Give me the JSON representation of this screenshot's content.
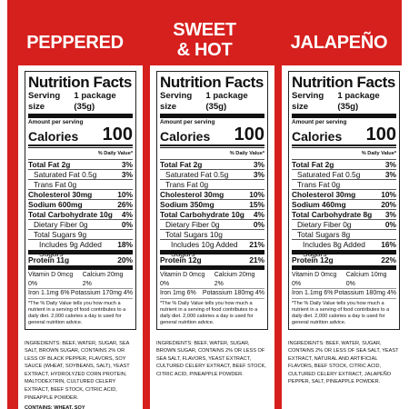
{
  "panels": [
    {
      "flavor_lines": [
        "PEPPERED",
        ""
      ],
      "title": "Nutrition Facts",
      "serving_label": "Serving size",
      "serving_value": "1 package (35g)",
      "amount_per_serving": "Amount per serving",
      "calories_label": "Calories",
      "calories": "100",
      "dv_header": "% Daily Value*",
      "nutrients": [
        {
          "label": "Total Fat 2g",
          "dv": "3%",
          "bold": true,
          "indent": 0
        },
        {
          "label": "Saturated Fat 0.5g",
          "dv": "3%",
          "bold": false,
          "indent": 1
        },
        {
          "label": "Trans Fat 0g",
          "dv": "",
          "bold": false,
          "indent": 1
        },
        {
          "label": "Cholesterol 30mg",
          "dv": "10%",
          "bold": true,
          "indent": 0
        },
        {
          "label": "Sodium 600mg",
          "dv": "26%",
          "bold": true,
          "indent": 0
        },
        {
          "label": "Total Carbohydrate 10g",
          "dv": "4%",
          "bold": true,
          "indent": 0
        },
        {
          "label": "Dietary Fiber 0g",
          "dv": "0%",
          "bold": false,
          "indent": 1
        },
        {
          "label": "Total Sugars 9g",
          "dv": "",
          "bold": false,
          "indent": 1
        },
        {
          "label": "Includes 9g Added Sugars",
          "dv": "18%",
          "bold": false,
          "indent": 2
        }
      ],
      "protein": "Protein 11g",
      "protein_dv": "20%",
      "vitamins": [
        [
          "Vitamin D 0mcg 0%",
          "Calcium 20mg 2%"
        ],
        [
          "Iron 1.1mg 6%",
          "Potassium 170mg 4%"
        ]
      ],
      "footnote": "*The % Daily Value tells you how much a nutrient in a serving of food contributes to a daily diet. 2,000 calories a day is used for general nutrition advice.",
      "ingredients": "INGREDIENTS: BEEF, WATER, SUGAR, SEA SALT, BROWN SUGAR, CONTAINS 2% OR LESS OF BLACK PEPPER, FLAVORS, SOY SAUCE (WHEAT, SOYBEANS, SALT), YEAST EXTRACT, HYDROLYZED CORN PROTEIN, MALTODEXTRIN, CULTURED CELERY EXTRACT, BEEF STOCK, CITRIC ACID, PINEAPPLE POWDER.",
      "contains": "CONTAINS: WHEAT, SOY"
    },
    {
      "flavor_lines": [
        "SWEET",
        "& HOT"
      ],
      "title": "Nutrition Facts",
      "serving_label": "Serving size",
      "serving_value": "1 package (35g)",
      "amount_per_serving": "Amount per serving",
      "calories_label": "Calories",
      "calories": "100",
      "dv_header": "% Daily Value*",
      "nutrients": [
        {
          "label": "Total Fat 2g",
          "dv": "3%",
          "bold": true,
          "indent": 0
        },
        {
          "label": "Saturated Fat 0.5g",
          "dv": "3%",
          "bold": false,
          "indent": 1
        },
        {
          "label": "Trans Fat 0g",
          "dv": "",
          "bold": false,
          "indent": 1
        },
        {
          "label": "Cholesterol 30mg",
          "dv": "10%",
          "bold": true,
          "indent": 0
        },
        {
          "label": "Sodium 350mg",
          "dv": "15%",
          "bold": true,
          "indent": 0
        },
        {
          "label": "Total Carbohydrate 10g",
          "dv": "4%",
          "bold": true,
          "indent": 0
        },
        {
          "label": "Dietary Fiber 0g",
          "dv": "0%",
          "bold": false,
          "indent": 1
        },
        {
          "label": "Total Sugars 10g",
          "dv": "",
          "bold": false,
          "indent": 1
        },
        {
          "label": "Includes 10g Added Sugars",
          "dv": "21%",
          "bold": false,
          "indent": 2
        }
      ],
      "protein": "Protein 12g",
      "protein_dv": "21%",
      "vitamins": [
        [
          "Vitamin D 0mcg 0%",
          "Calcium 20mg 2%"
        ],
        [
          "Iron 1mg 6%",
          "Potassium 180mg 4%"
        ]
      ],
      "footnote": "*The % Daily Value tells you how much a nutrient in a serving of food contributes to a daily diet. 2,000 calories a day is used for general nutrition advice.",
      "ingredients": "INGREDIENTS: BEEF, WATER, SUGAR, BROWN SUGAR, CONTAINS 2% OR LESS OF SEA SALT, FLAVORS, YEAST EXTRACT, CULTURED CELERY EXTRACT, BEEF STOCK, CITRIC ACID, PINEAPPLE POWDER.",
      "contains": ""
    },
    {
      "flavor_lines": [
        "JALAPEÑO",
        ""
      ],
      "title": "Nutrition Facts",
      "serving_label": "Serving size",
      "serving_value": "1 package (35g)",
      "amount_per_serving": "Amount per serving",
      "calories_label": "Calories",
      "calories": "100",
      "dv_header": "% Daily Value*",
      "nutrients": [
        {
          "label": "Total Fat 2g",
          "dv": "3%",
          "bold": true,
          "indent": 0
        },
        {
          "label": "Saturated Fat 0.5g",
          "dv": "3%",
          "bold": false,
          "indent": 1
        },
        {
          "label": "Trans Fat 0g",
          "dv": "",
          "bold": false,
          "indent": 1
        },
        {
          "label": "Cholesterol 30mg",
          "dv": "10%",
          "bold": true,
          "indent": 0
        },
        {
          "label": "Sodium 460mg",
          "dv": "20%",
          "bold": true,
          "indent": 0
        },
        {
          "label": "Total Carbohydrate 8g",
          "dv": "3%",
          "bold": true,
          "indent": 0
        },
        {
          "label": "Dietary Fiber 0g",
          "dv": "0%",
          "bold": false,
          "indent": 1
        },
        {
          "label": "Total Sugars 8g",
          "dv": "",
          "bold": false,
          "indent": 1
        },
        {
          "label": "Includes 8g Added Sugars",
          "dv": "16%",
          "bold": false,
          "indent": 2
        }
      ],
      "protein": "Protein 12g",
      "protein_dv": "22%",
      "vitamins": [
        [
          "Vitamin D 0mcg 0%",
          "Calcium 10mg 0%"
        ],
        [
          "Iron 1.1mg 6%",
          "Potassium 180mg 4%"
        ]
      ],
      "footnote": "*The % Daily Value tells you how much a nutrient in a serving of food contributes to a daily diet. 2,000 calories a day is used for general nutrition advice.",
      "ingredients": "INGREDIENTS: BEEF, WATER, SUGAR, CONTAINS 2% OR LESS OF SEA SALT, YEAST EXTRACT, NATURAL AND ARTIFICIAL FLAVORS, BEEF STOCK, CITRIC ACID, CULTURED CELERY EXTRACT, JALAPEÑO PEPPER, SALT, PINEAPPLE POWDER.",
      "contains": ""
    }
  ]
}
